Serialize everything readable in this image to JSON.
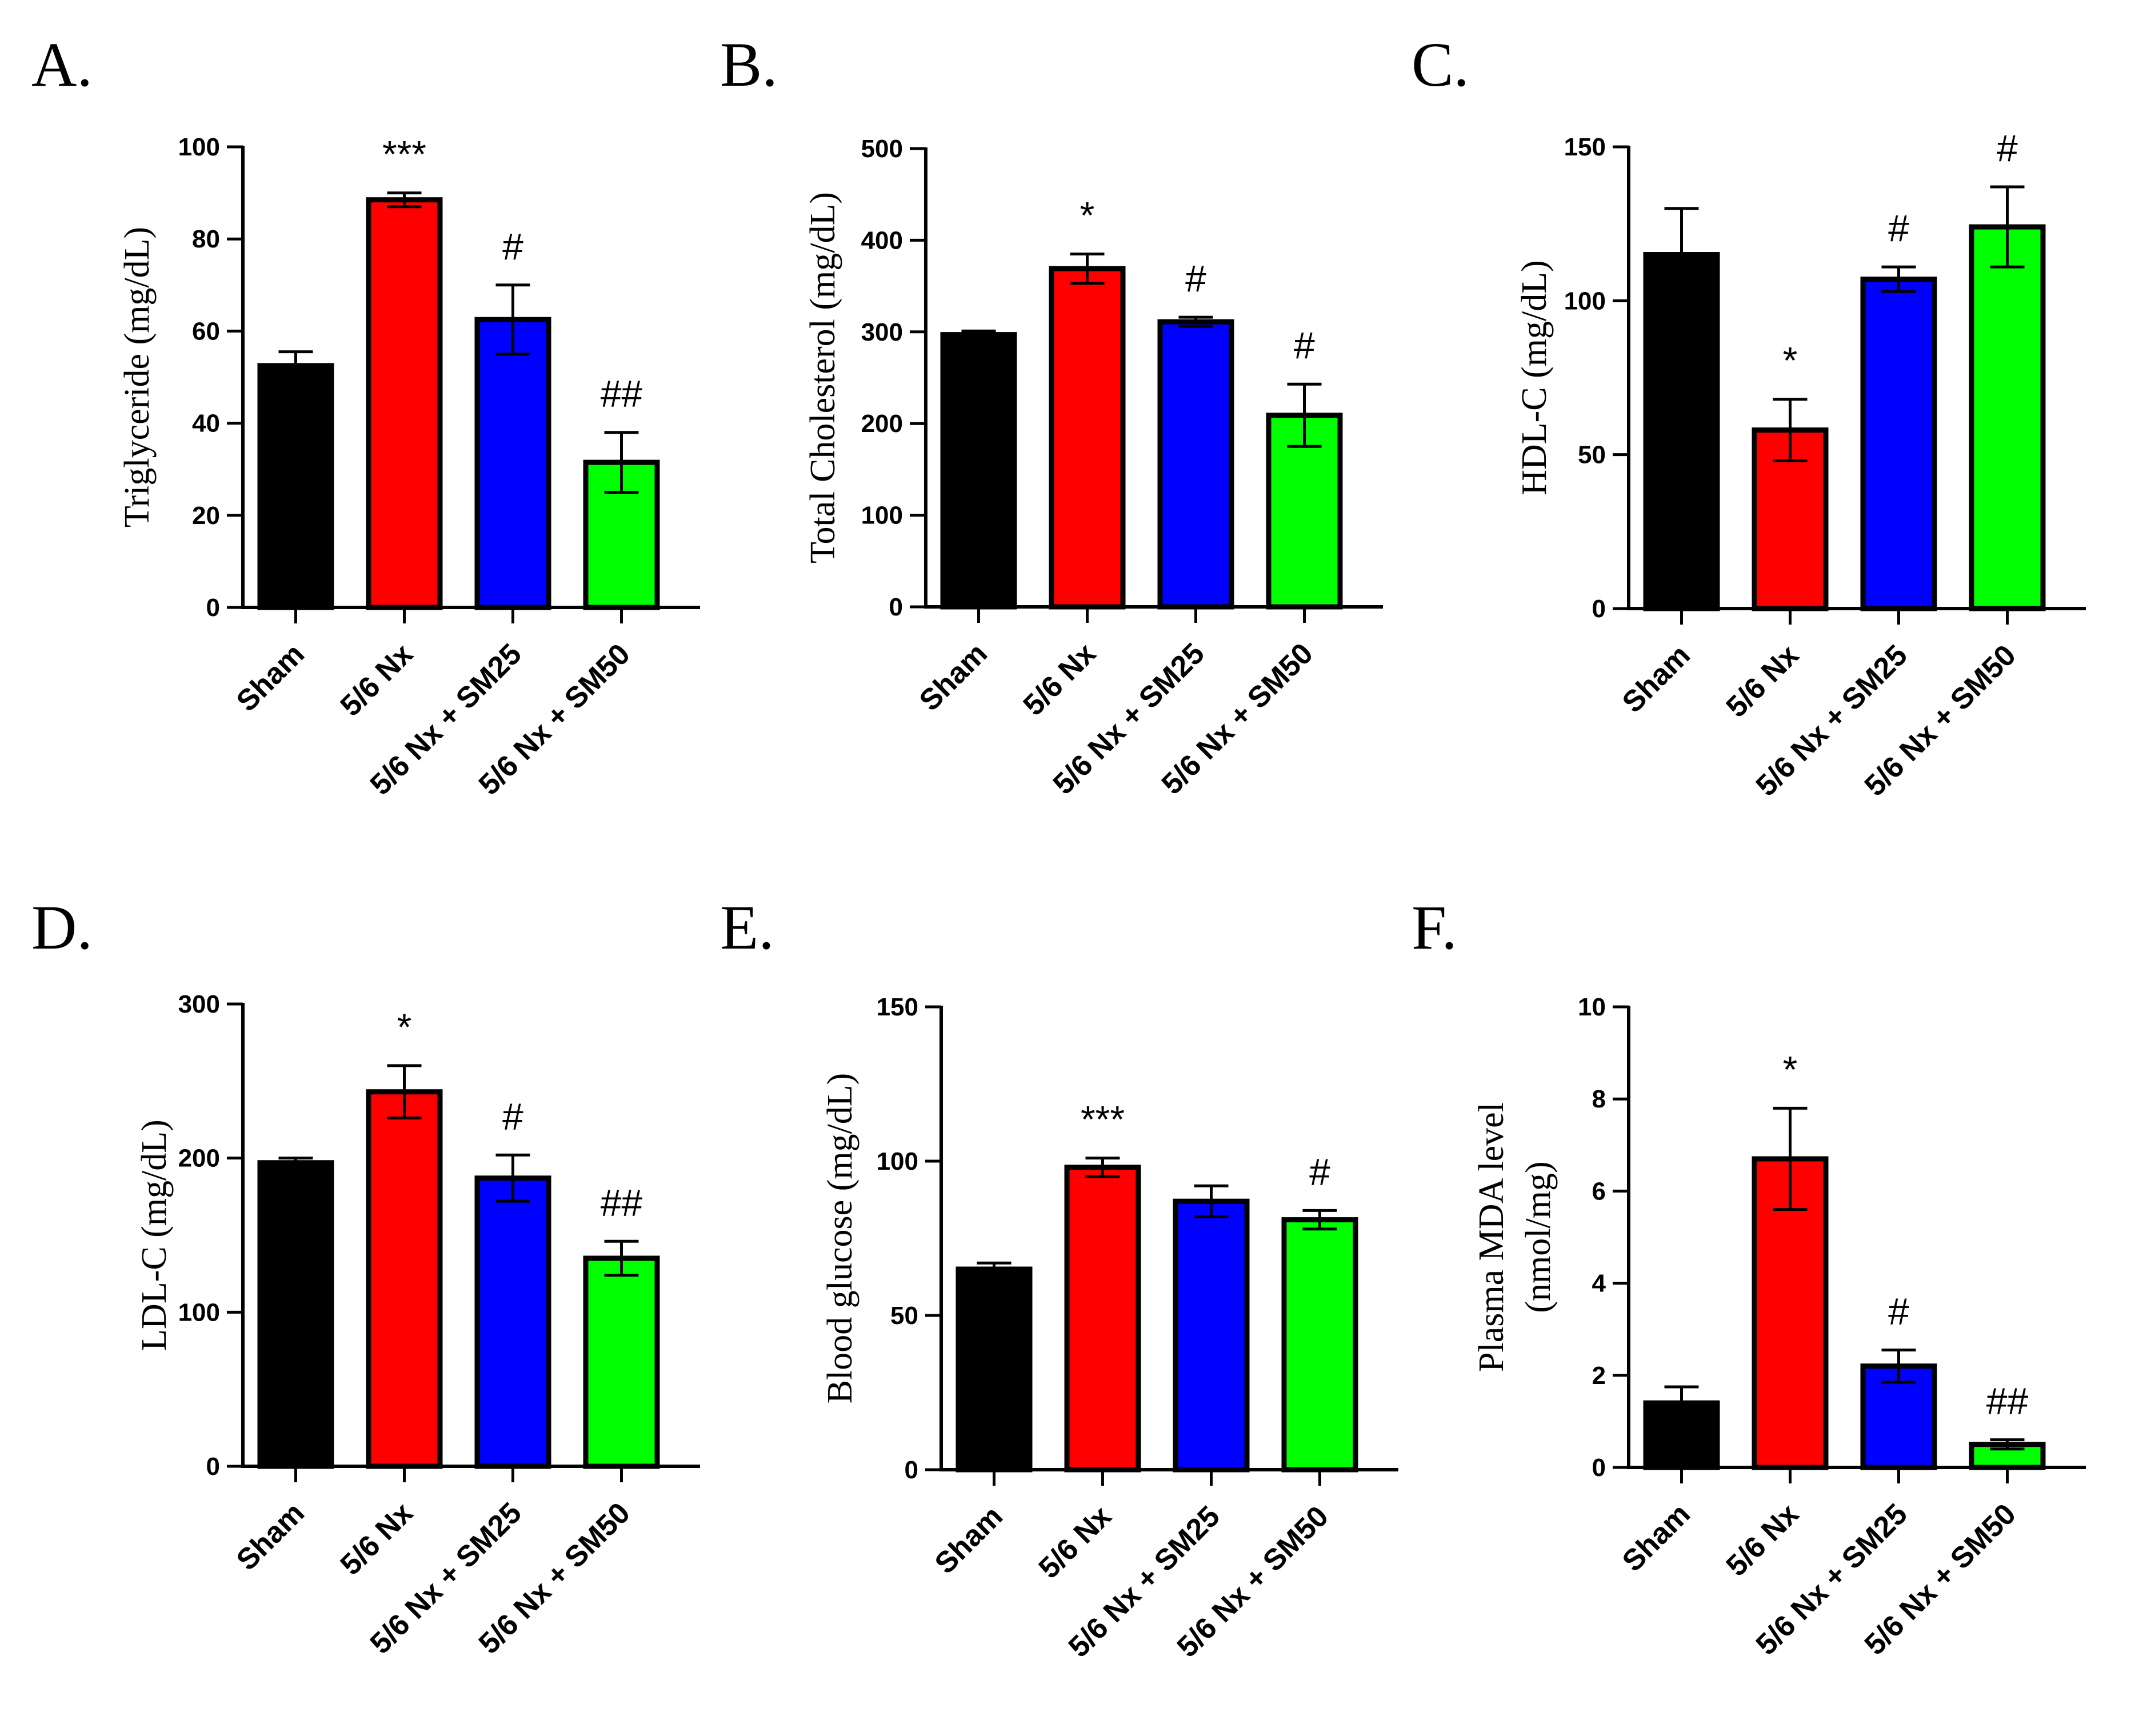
{
  "chart_data": [
    {
      "panel": "A.",
      "type": "bar",
      "ylabel": "Triglyceride (mg/dL)",
      "ylim": [
        0,
        100
      ],
      "yticks": [
        0,
        20,
        40,
        60,
        80,
        100
      ],
      "categories": [
        "Sham",
        "5/6 Nx",
        "5/6 Nx + SM25",
        "5/6 Nx + SM50"
      ],
      "values": [
        52.5,
        88.5,
        62.5,
        31.5
      ],
      "errors": [
        3.0,
        1.5,
        7.5,
        6.5
      ],
      "colors": [
        "#000000",
        "#ff0000",
        "#0000ff",
        "#00ff00"
      ],
      "annotations": [
        "",
        "***",
        "#",
        "##"
      ]
    },
    {
      "panel": "B.",
      "type": "bar",
      "ylabel": "Total Cholesterol (mg/dL)",
      "ylim": [
        0,
        500
      ],
      "yticks": [
        0,
        100,
        200,
        300,
        400,
        500
      ],
      "categories": [
        "Sham",
        "5/6 Nx",
        "5/6 Nx + SM25",
        "5/6 Nx + SM50"
      ],
      "values": [
        297,
        369,
        311,
        209
      ],
      "errors": [
        4,
        16,
        5,
        34
      ],
      "colors": [
        "#000000",
        "#ff0000",
        "#0000ff",
        "#00ff00"
      ],
      "annotations": [
        "",
        "*",
        "#",
        "#"
      ]
    },
    {
      "panel": "C.",
      "type": "bar",
      "ylabel": "HDL-C (mg/dL)",
      "ylim": [
        0,
        150
      ],
      "yticks": [
        0,
        50,
        100,
        150
      ],
      "categories": [
        "Sham",
        "5/6 Nx",
        "5/6 Nx + SM25",
        "5/6 Nx + SM50"
      ],
      "values": [
        115,
        58,
        107,
        124
      ],
      "errors": [
        15,
        10,
        4,
        13
      ],
      "colors": [
        "#000000",
        "#ff0000",
        "#0000ff",
        "#00ff00"
      ],
      "annotations": [
        "",
        "*",
        "#",
        "#"
      ]
    },
    {
      "panel": "D.",
      "type": "bar",
      "ylabel": "LDL-C (mg/dL)",
      "ylim": [
        0,
        300
      ],
      "yticks": [
        0,
        100,
        200,
        300
      ],
      "categories": [
        "Sham",
        "5/6 Nx",
        "5/6 Nx + SM25",
        "5/6 Nx + SM50"
      ],
      "values": [
        197,
        243,
        187,
        135
      ],
      "errors": [
        3,
        17,
        15,
        11
      ],
      "colors": [
        "#000000",
        "#ff0000",
        "#0000ff",
        "#00ff00"
      ],
      "annotations": [
        "",
        "*",
        "#",
        "##"
      ]
    },
    {
      "panel": "E.",
      "type": "bar",
      "ylabel": "Blood glucose (mg/dL)",
      "ylim": [
        0,
        150
      ],
      "yticks": [
        0,
        50,
        100,
        150
      ],
      "categories": [
        "Sham",
        "5/6 Nx",
        "5/6 Nx + SM25",
        "5/6 Nx + SM50"
      ],
      "values": [
        65,
        98,
        87,
        81
      ],
      "errors": [
        2,
        3,
        5,
        3
      ],
      "colors": [
        "#000000",
        "#ff0000",
        "#0000ff",
        "#00ff00"
      ],
      "annotations": [
        "",
        "***",
        "",
        "#"
      ]
    },
    {
      "panel": "F.",
      "type": "bar",
      "ylabel": "Plasma MDA level",
      "ylabel2": "(nmol/mg)",
      "ylim": [
        0,
        10
      ],
      "yticks": [
        0,
        2,
        4,
        6,
        8,
        10
      ],
      "categories": [
        "Sham",
        "5/6 Nx",
        "5/6 Nx + SM25",
        "5/6 Nx + SM50"
      ],
      "values": [
        1.4,
        6.7,
        2.2,
        0.5
      ],
      "errors": [
        0.35,
        1.1,
        0.35,
        0.1
      ],
      "colors": [
        "#000000",
        "#ff0000",
        "#0000ff",
        "#00ff00"
      ],
      "annotations": [
        "",
        "*",
        "#",
        "##"
      ]
    }
  ]
}
